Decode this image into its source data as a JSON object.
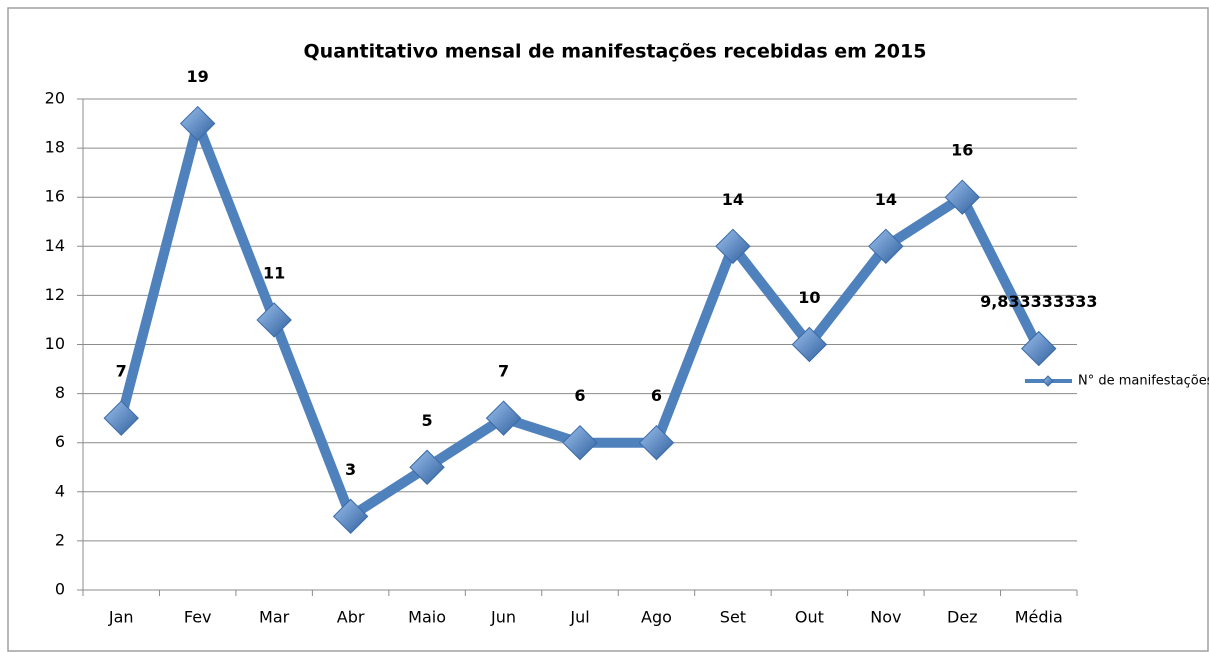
{
  "chart_data": {
    "type": "line",
    "title": "Quantitativo mensal de manifestações recebidas em 2015",
    "categories": [
      "Jan",
      "Fev",
      "Mar",
      "Abr",
      "Maio",
      "Jun",
      "Jul",
      "Ago",
      "Set",
      "Out",
      "Nov",
      "Dez",
      "Média"
    ],
    "series": [
      {
        "name": "N° de manifestações",
        "color": "#4f81bd",
        "values": [
          7,
          19,
          11,
          3,
          5,
          7,
          6,
          6,
          14,
          10,
          14,
          16,
          9.833333333
        ],
        "value_labels": [
          "7",
          "19",
          "11",
          "3",
          "5",
          "7",
          "6",
          "6",
          "14",
          "10",
          "14",
          "16",
          "9,833333333"
        ]
      }
    ],
    "ylim": [
      0,
      20
    ],
    "yticks": [
      0,
      2,
      4,
      6,
      8,
      10,
      12,
      14,
      16,
      18,
      20
    ],
    "grid": true,
    "legend": "right"
  }
}
